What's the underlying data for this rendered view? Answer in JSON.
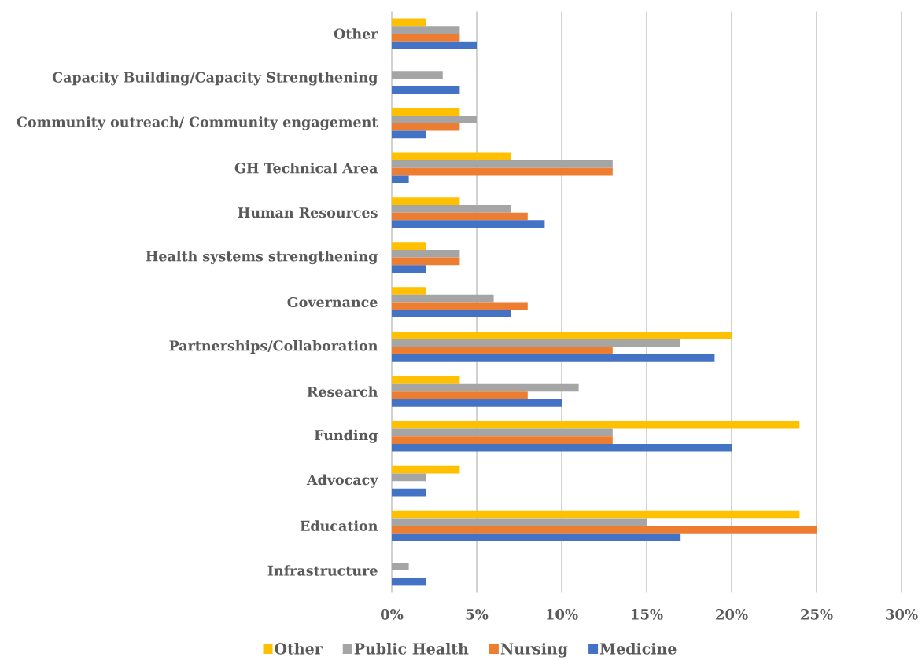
{
  "chart_data": {
    "type": "bar",
    "orientation": "horizontal",
    "categories": [
      "Other",
      "Capacity Building/Capacity Strengthening",
      "Community outreach/ Community engagement",
      "GH Technical Area",
      "Human Resources",
      "Health systems strengthening",
      "Governance",
      "Partnerships/Collaboration",
      "Research",
      "Funding",
      "Advocacy",
      "Education",
      "Infrastructure"
    ],
    "series": [
      {
        "name": "Other",
        "color": "#ffc000",
        "values": [
          2,
          null,
          4,
          7,
          4,
          2,
          2,
          20,
          4,
          24,
          4,
          24,
          null
        ]
      },
      {
        "name": "Public Health",
        "color": "#a5a5a5",
        "values": [
          4,
          3,
          5,
          13,
          7,
          4,
          6,
          17,
          11,
          13,
          2,
          15,
          1
        ]
      },
      {
        "name": "Nursing",
        "color": "#ed7d31",
        "values": [
          4,
          null,
          4,
          13,
          8,
          4,
          8,
          13,
          8,
          13,
          null,
          25,
          null
        ]
      },
      {
        "name": "Medicine",
        "color": "#4472c4",
        "values": [
          5,
          4,
          2,
          1,
          9,
          2,
          7,
          19,
          10,
          20,
          2,
          17,
          2
        ]
      }
    ],
    "xlim": [
      0,
      30
    ],
    "xticks": [
      {
        "value": 0,
        "label": "0%"
      },
      {
        "value": 5,
        "label": "5%"
      },
      {
        "value": 10,
        "label": "10%"
      },
      {
        "value": 15,
        "label": "15%"
      },
      {
        "value": 20,
        "label": "20%"
      },
      {
        "value": 25,
        "label": "25%"
      },
      {
        "value": 30,
        "label": "30%"
      }
    ],
    "grid": "x",
    "legend": "bottom"
  }
}
